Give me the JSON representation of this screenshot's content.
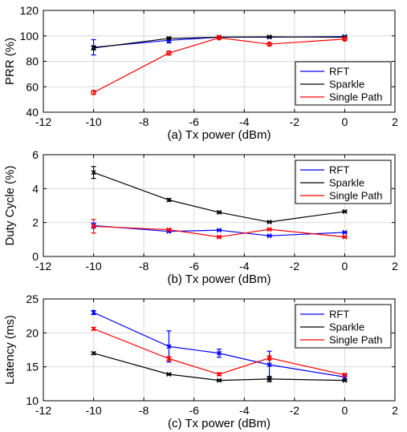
{
  "colors": {
    "rft": "#0000ff",
    "sparkle": "#000000",
    "single_path": "#ff0000",
    "grid": "#d9d9d9",
    "axis": "#000000"
  },
  "chart_data": [
    {
      "type": "line",
      "xlabel": "(a) Tx power (dBm)",
      "ylabel": "PRR (%)",
      "xlim": [
        -12,
        2
      ],
      "ylim": [
        40,
        120
      ],
      "xticks": [
        -12,
        -10,
        -8,
        -6,
        -4,
        -2,
        0,
        2
      ],
      "yticks": [
        40,
        60,
        80,
        100,
        120
      ],
      "grid": true,
      "legend": "bottom-right",
      "x": [
        -10,
        -7,
        -5,
        -3,
        0
      ],
      "series": [
        {
          "name": "RFT",
          "color": "#0000ff",
          "marker": "x",
          "values": [
            91,
            96.5,
            99,
            99,
            99.5
          ],
          "errors": [
            6,
            2,
            0.5,
            0.8,
            0.3
          ]
        },
        {
          "name": "Sparkle",
          "color": "#000000",
          "marker": "x",
          "values": [
            90.5,
            98,
            99,
            99.2,
            99
          ],
          "errors": [
            1.5,
            1,
            0.5,
            0.5,
            0.5
          ]
        },
        {
          "name": "Single Path",
          "color": "#ff0000",
          "marker": "o",
          "values": [
            55.5,
            86.5,
            98.5,
            93.5,
            97.5
          ],
          "errors": [
            1.5,
            1.5,
            1,
            1,
            1
          ]
        }
      ]
    },
    {
      "type": "line",
      "xlabel": "(b) Tx power (dBm)",
      "ylabel": "Duty Cycle (%)",
      "xlim": [
        -12,
        2
      ],
      "ylim": [
        0,
        6
      ],
      "xticks": [
        -12,
        -10,
        -8,
        -6,
        -4,
        -2,
        0,
        2
      ],
      "yticks": [
        0,
        2,
        4,
        6
      ],
      "grid": true,
      "legend": "top-right",
      "x": [
        -10,
        -7,
        -5,
        -3,
        0
      ],
      "series": [
        {
          "name": "RFT",
          "color": "#0000ff",
          "marker": "x",
          "values": [
            1.82,
            1.48,
            1.55,
            1.22,
            1.42
          ],
          "errors": [
            0.15,
            0.05,
            0.03,
            0.03,
            0.03
          ]
        },
        {
          "name": "Sparkle",
          "color": "#000000",
          "marker": "x",
          "values": [
            4.95,
            3.33,
            2.6,
            2.03,
            2.65
          ],
          "errors": [
            0.35,
            0.08,
            0.05,
            0.04,
            0.04
          ]
        },
        {
          "name": "Single Path",
          "color": "#ff0000",
          "marker": "x",
          "values": [
            1.78,
            1.58,
            1.15,
            1.6,
            1.15
          ],
          "errors": [
            0.4,
            0.05,
            0.05,
            0.04,
            0.04
          ]
        }
      ]
    },
    {
      "type": "line",
      "xlabel": "(c) Tx power (dBm)",
      "ylabel": "Latency (ms)",
      "xlim": [
        -12,
        2
      ],
      "ylim": [
        10,
        25
      ],
      "xticks": [
        -12,
        -10,
        -8,
        -6,
        -4,
        -2,
        0,
        2
      ],
      "yticks": [
        10,
        15,
        20,
        25
      ],
      "grid": true,
      "legend": "top-right",
      "x": [
        -10,
        -7,
        -5,
        -3,
        0
      ],
      "series": [
        {
          "name": "RFT",
          "color": "#0000ff",
          "marker": "x",
          "values": [
            23,
            18,
            17,
            15.3,
            13.5
          ],
          "errors": [
            0.3,
            2.3,
            0.6,
            2,
            0.4
          ]
        },
        {
          "name": "Sparkle",
          "color": "#000000",
          "marker": "x",
          "values": [
            17,
            13.9,
            13,
            13.2,
            13
          ],
          "errors": [
            0.15,
            0.1,
            0.1,
            0.4,
            0.1
          ]
        },
        {
          "name": "Single Path",
          "color": "#ff0000",
          "marker": "x",
          "values": [
            20.6,
            16.2,
            13.9,
            16.3,
            13.8
          ],
          "errors": [
            0.2,
            0.3,
            0.2,
            0.3,
            0.2
          ]
        }
      ]
    }
  ]
}
